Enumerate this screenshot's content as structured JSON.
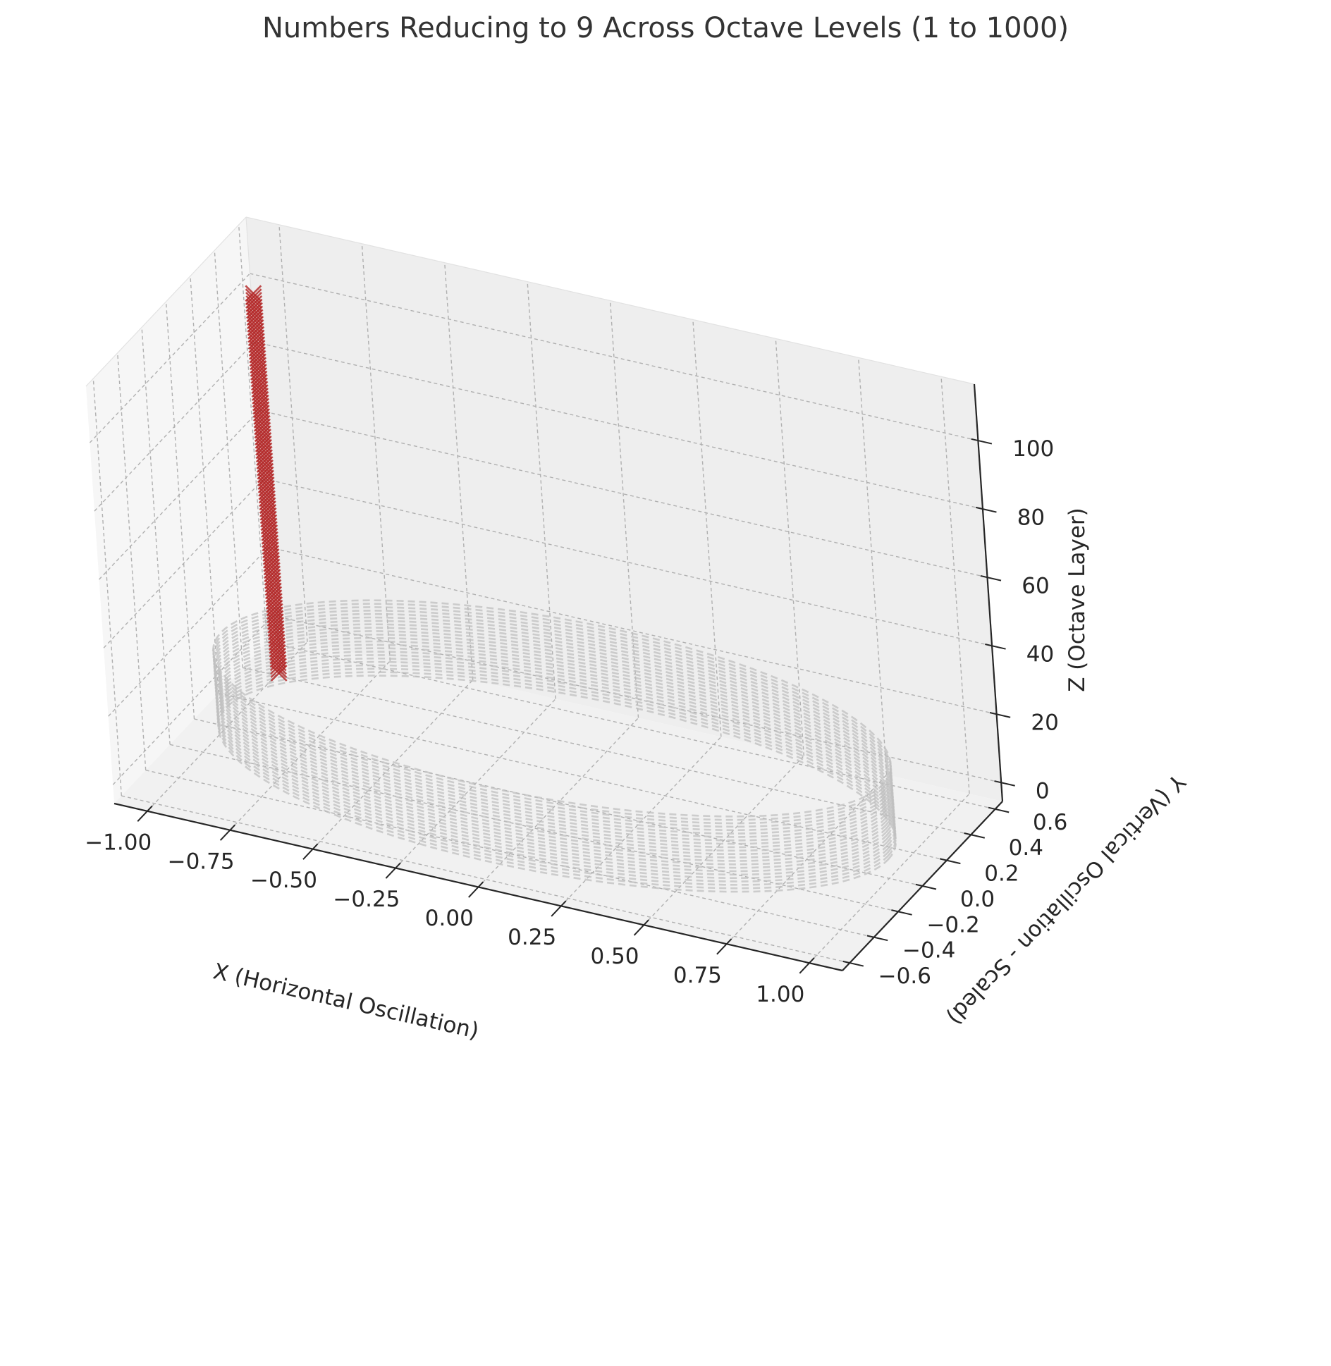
{
  "chart_data": {
    "type": "scatter3d",
    "title": "Numbers Reducing to 9 Across Octave Levels (1 to 1000)",
    "xlabel": "X (Horizontal Oscillation)",
    "ylabel": "Y (Vertical Oscillation - Scaled)",
    "zlabel": "Z (Octave Layer)",
    "xlim": [
      -1.1,
      1.1
    ],
    "ylim": [
      -0.66,
      0.66
    ],
    "zlim": [
      -5.5,
      116.5
    ],
    "xticks": [
      -1.0,
      -0.75,
      -0.5,
      -0.25,
      0.0,
      0.25,
      0.5,
      0.75,
      1.0
    ],
    "xtick_labels": [
      "−1.00",
      "−0.75",
      "−0.50",
      "−0.25",
      "0.00",
      "0.25",
      "0.50",
      "0.75",
      "1.00"
    ],
    "yticks": [
      -0.6,
      -0.4,
      -0.2,
      0.0,
      0.2,
      0.4,
      0.6
    ],
    "ytick_labels": [
      "−0.6",
      "−0.4",
      "−0.2",
      "0.0",
      "0.2",
      "0.4",
      "0.6"
    ],
    "zticks": [
      0,
      20,
      40,
      60,
      80,
      100
    ],
    "ztick_labels": [
      "0",
      "20",
      "40",
      "60",
      "80",
      "100"
    ],
    "grid": true,
    "series": [
      {
        "name": "octave rings",
        "kind": "dashed-circle",
        "color": "#bfbfbf",
        "radius_x": 1.0,
        "radius_y": 0.6,
        "z_start": 0,
        "z_end": 22,
        "z_step": 1
      },
      {
        "name": "numbers reducing to 9",
        "kind": "marker-x",
        "color": "#b22222",
        "x": -0.95,
        "y": 0.3,
        "z_start": 0,
        "z_end": 111,
        "z_step": 1
      }
    ]
  }
}
